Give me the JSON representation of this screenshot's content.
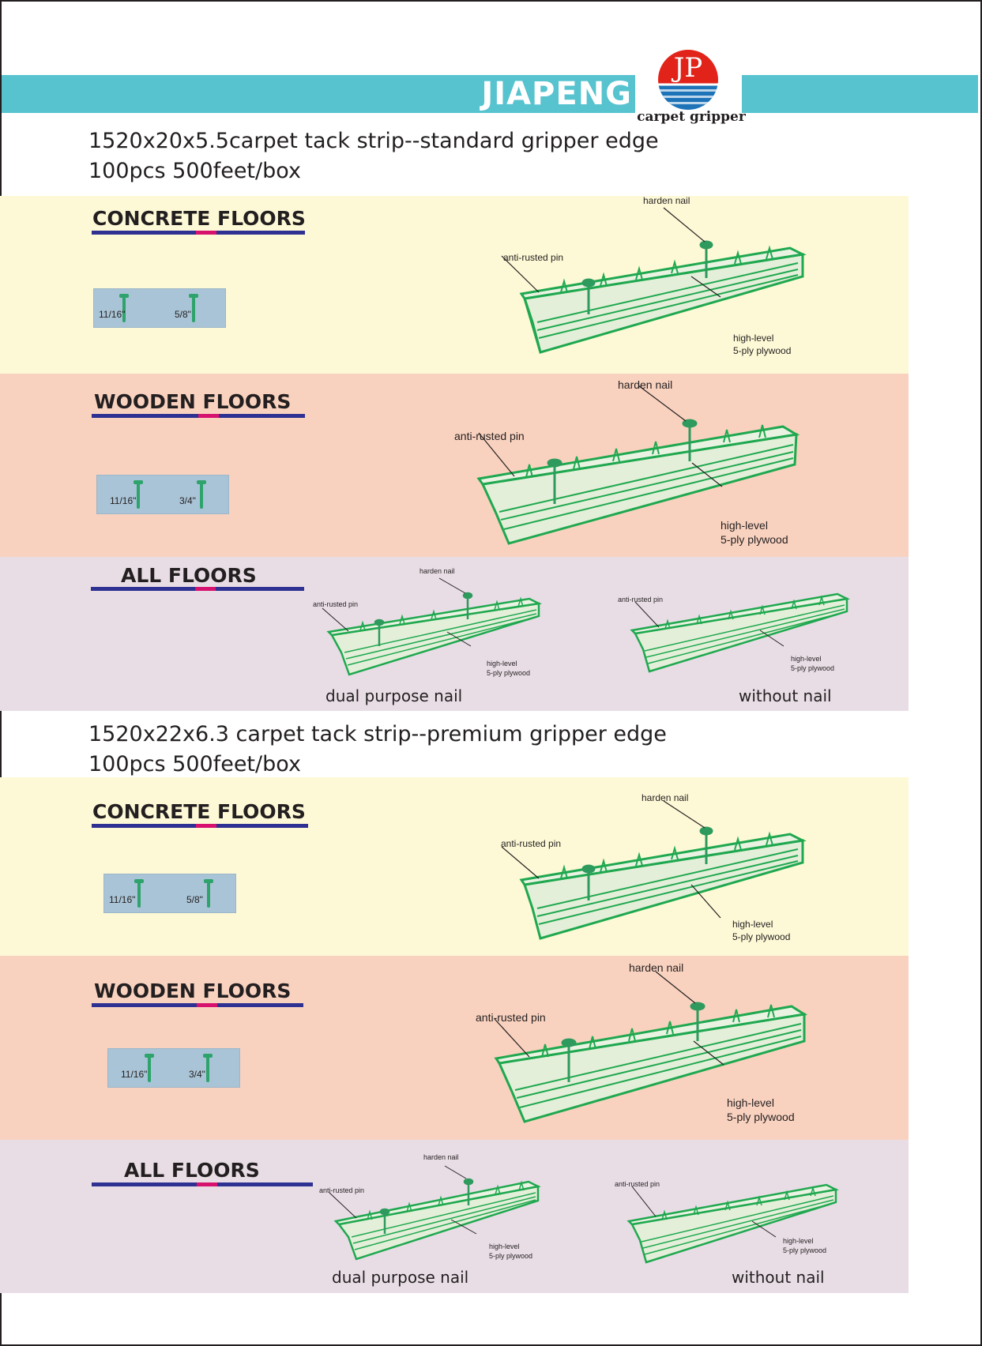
{
  "brand": {
    "name": "JIAPENG",
    "logo_letters": "JP",
    "logo_caption": "carpet gripper",
    "colors": {
      "bar": "#56c3cf",
      "logo_red": "#e2231a",
      "logo_blue": "#1d73b8"
    }
  },
  "products": [
    {
      "title": "1520x20x5.5carpet tack strip--standard gripper edge",
      "packing": "100pcs  500feet/box",
      "sections": [
        {
          "floor": "CONCRETE  FLOORS",
          "nails": [
            "11/16\"",
            "5/8\""
          ],
          "callouts": {
            "nail": "harden nail",
            "pin": "anti-rusted pin",
            "ply1": "high-level",
            "ply2": "5-ply plywood"
          }
        },
        {
          "floor": "WOODEN   FLOORS",
          "nails": [
            "11/16\"",
            "3/4\""
          ],
          "callouts": {
            "nail": "harden nail",
            "pin": "anti-rusted pin",
            "ply1": "high-level",
            "ply2": "5-ply plywood"
          }
        },
        {
          "floor": "ALL   FLOORS",
          "variants": [
            {
              "caption": "dual purpose nail",
              "callouts": {
                "nail": "harden nail",
                "pin": "anti-rusted pin",
                "ply1": "high-level",
                "ply2": "5-ply plywood"
              }
            },
            {
              "caption": "without nail",
              "callouts": {
                "pin": "anti-rusted pin",
                "ply1": "high-level",
                "ply2": "5-ply plywood"
              }
            }
          ]
        }
      ]
    },
    {
      "title": "1520x22x6.3 carpet tack strip--premium  gripper edge",
      "packing": "100pcs  500feet/box",
      "sections": [
        {
          "floor": "CONCRETE  FLOORS",
          "nails": [
            "11/16\"",
            "5/8\""
          ],
          "callouts": {
            "nail": "harden nail",
            "pin": "anti-rusted pin",
            "ply1": "high-level",
            "ply2": "5-ply plywood"
          }
        },
        {
          "floor": "WOODEN   FLOORS",
          "nails": [
            "11/16\"",
            "3/4\""
          ],
          "callouts": {
            "nail": "harden nail",
            "pin": "anti-rusted pin",
            "ply1": "high-level",
            "ply2": "5-ply plywood"
          }
        },
        {
          "floor": "ALL   FLOORS",
          "variants": [
            {
              "caption": "dual purpose nail",
              "callouts": {
                "nail": "harden nail",
                "pin": "anti-rusted pin",
                "ply1": "high-level",
                "ply2": "5-ply plywood"
              }
            },
            {
              "caption": "without nail",
              "callouts": {
                "pin": "anti-rusted pin",
                "ply1": "high-level",
                "ply2": "5-ply plywood"
              }
            }
          ]
        }
      ]
    }
  ],
  "colors": {
    "band_concrete": "#fdf9d6",
    "band_wooden": "#f9d2bf",
    "band_all": "#e8dde5",
    "strip_green": "#1fa84f",
    "nail_green": "#2ea36b"
  }
}
